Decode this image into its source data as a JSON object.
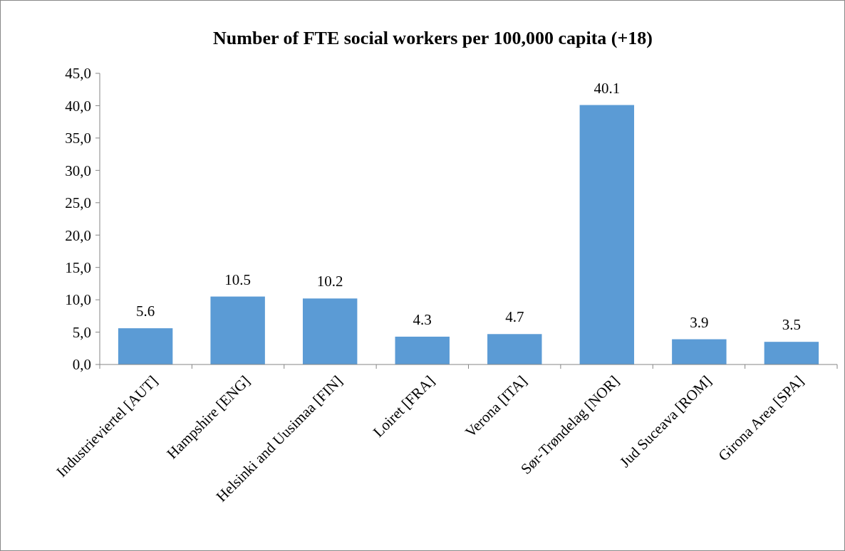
{
  "chart_data": {
    "type": "bar",
    "title": "Number of FTE social workers per 100,000 capita (+18)",
    "categories": [
      "Industrieviertel [AUT]",
      "Hampshire [ENG]",
      "Helsinki and Uusimaa [FIN]",
      "Loiret [FRA]",
      "Verona [ITA]",
      "Sør-Trøndelag [NOR]",
      "Jud Suceava [ROM]",
      "Girona Area [SPA]"
    ],
    "values": [
      5.6,
      10.5,
      10.2,
      4.3,
      4.7,
      40.1,
      3.9,
      3.5
    ],
    "color": "#5b9bd5",
    "ylim": [
      0,
      45
    ],
    "yticks": [
      {
        "value": 0,
        "label": "0,0"
      },
      {
        "value": 5,
        "label": "5,0"
      },
      {
        "value": 10,
        "label": "10,0"
      },
      {
        "value": 15,
        "label": "15,0"
      },
      {
        "value": 20,
        "label": "20,0"
      },
      {
        "value": 25,
        "label": "25,0"
      },
      {
        "value": 30,
        "label": "30,0"
      },
      {
        "value": 35,
        "label": "35,0"
      },
      {
        "value": 40,
        "label": "40,0"
      },
      {
        "value": 45,
        "label": "45,0"
      }
    ],
    "data_labels": true
  }
}
